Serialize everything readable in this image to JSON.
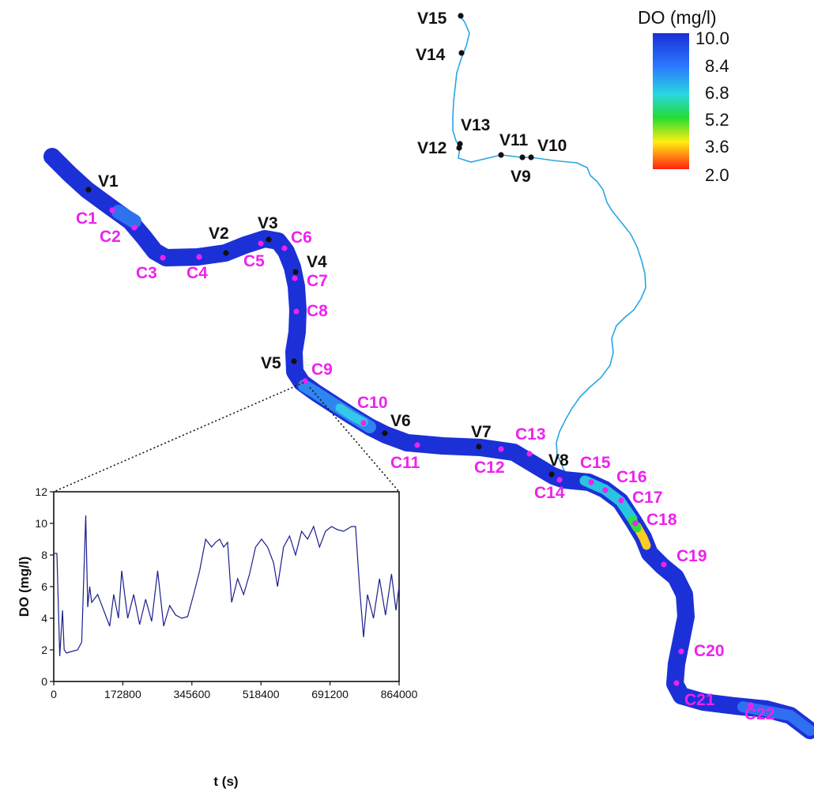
{
  "legend": {
    "title": "DO (mg/l)",
    "ticks": [
      "10.0",
      "8.4",
      "6.8",
      "5.2",
      "3.6",
      "2.0"
    ],
    "colors": [
      "#1a2fd6",
      "#2b7bff",
      "#29d7e0",
      "#22dd33",
      "#ffee11",
      "#ff2211"
    ]
  },
  "stations_v": [
    {
      "label": "V1"
    },
    {
      "label": "V2"
    },
    {
      "label": "V3"
    },
    {
      "label": "V4"
    },
    {
      "label": "V5"
    },
    {
      "label": "V6"
    },
    {
      "label": "V7"
    },
    {
      "label": "V8"
    },
    {
      "label": "V9"
    },
    {
      "label": "V10"
    },
    {
      "label": "V11"
    },
    {
      "label": "V12"
    },
    {
      "label": "V13"
    },
    {
      "label": "V14"
    },
    {
      "label": "V15"
    }
  ],
  "stations_c": [
    {
      "label": "C1"
    },
    {
      "label": "C2"
    },
    {
      "label": "C3"
    },
    {
      "label": "C4"
    },
    {
      "label": "C5"
    },
    {
      "label": "C6"
    },
    {
      "label": "C7"
    },
    {
      "label": "C8"
    },
    {
      "label": "C9"
    },
    {
      "label": "C10"
    },
    {
      "label": "C11"
    },
    {
      "label": "C12"
    },
    {
      "label": "C13"
    },
    {
      "label": "C14"
    },
    {
      "label": "C15"
    },
    {
      "label": "C16"
    },
    {
      "label": "C17"
    },
    {
      "label": "C18"
    },
    {
      "label": "C19"
    },
    {
      "label": "C20"
    },
    {
      "label": "C21"
    },
    {
      "label": "C22"
    }
  ],
  "chart_data": {
    "type": "line",
    "xlabel": "t (s)",
    "ylabel": "DO (mg/l)",
    "xlim": [
      0,
      864000
    ],
    "ylim": [
      0,
      12
    ],
    "xticks": [
      "0",
      "172800",
      "345600",
      "518400",
      "691200",
      "864000"
    ],
    "yticks": [
      "0",
      "2",
      "4",
      "6",
      "8",
      "10",
      "12"
    ],
    "series": [
      {
        "color": "#1a1f8c",
        "x": [
          0,
          8000,
          15000,
          22000,
          26000,
          32000,
          45000,
          60000,
          70000,
          80000,
          85000,
          90000,
          95000,
          110000,
          125000,
          140000,
          150000,
          162000,
          170000,
          185000,
          200000,
          215000,
          230000,
          245000,
          260000,
          275000,
          290000,
          305000,
          320000,
          335000,
          350000,
          365000,
          380000,
          395000,
          405000,
          415000,
          425000,
          435000,
          445000,
          460000,
          475000,
          490000,
          505000,
          520000,
          535000,
          550000,
          560000,
          575000,
          590000,
          605000,
          620000,
          635000,
          650000,
          665000,
          680000,
          695000,
          710000,
          725000,
          745000,
          755000,
          765000,
          775000,
          785000,
          800000,
          815000,
          830000,
          845000,
          856000,
          864000
        ],
        "y": [
          8.1,
          8.1,
          1.6,
          4.5,
          2.0,
          1.8,
          1.9,
          2.0,
          2.5,
          10.5,
          4.7,
          6.0,
          5.0,
          5.5,
          4.5,
          3.5,
          5.5,
          4.0,
          7.0,
          4.0,
          5.5,
          3.6,
          5.2,
          3.8,
          7.0,
          3.5,
          4.8,
          4.2,
          4.0,
          4.1,
          5.5,
          7.0,
          9.0,
          8.5,
          8.8,
          9.0,
          8.5,
          8.8,
          5.0,
          6.5,
          5.5,
          6.8,
          8.5,
          9.0,
          8.5,
          7.5,
          6.0,
          8.5,
          9.2,
          8.0,
          9.5,
          9.0,
          9.8,
          8.5,
          9.5,
          9.8,
          9.6,
          9.5,
          9.8,
          9.8,
          6.0,
          2.8,
          5.5,
          4.0,
          6.5,
          4.2,
          6.8,
          4.5,
          6.0
        ]
      }
    ]
  }
}
